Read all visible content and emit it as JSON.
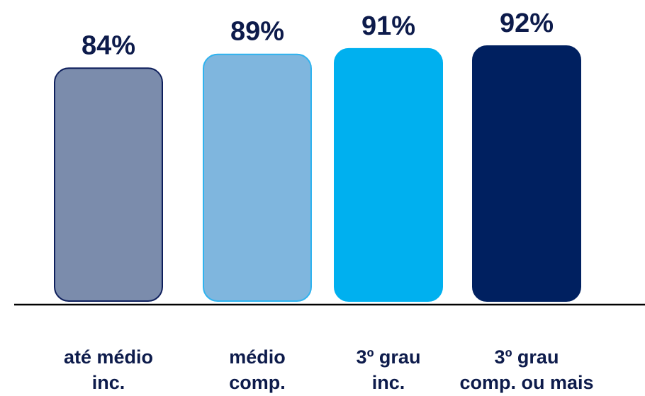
{
  "chart_data": {
    "type": "bar",
    "categories": [
      "até médio\ninc.",
      "médio\ncomp.",
      "3º grau\ninc.",
      "3º grau\ncomp. ou mais"
    ],
    "values": [
      84,
      89,
      91,
      92
    ],
    "value_labels": [
      "84%",
      "89%",
      "91%",
      "92%"
    ],
    "colors": [
      "#7b8cac",
      "#7fb6de",
      "#00b0ef",
      "#002060"
    ],
    "border_colors": [
      "#0e1f5c",
      "#2fb3ef",
      "#00b0ef",
      "#002060"
    ],
    "label_color": "#0d1b4b",
    "title": "",
    "xlabel": "",
    "ylabel": "",
    "grid": false,
    "legend": "none"
  }
}
